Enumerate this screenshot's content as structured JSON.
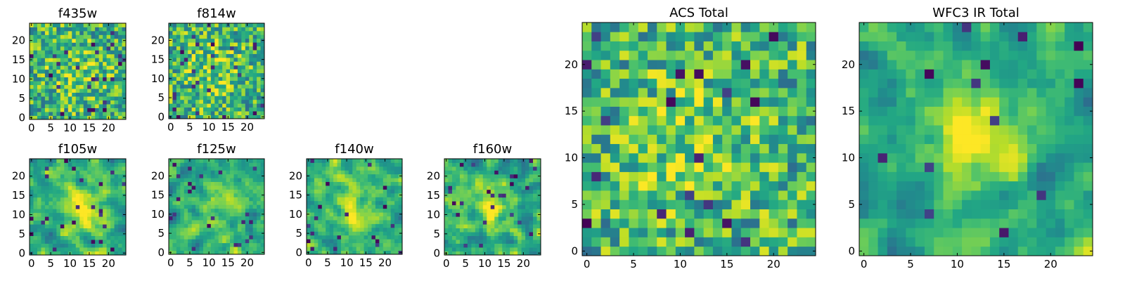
{
  "chart_data": [
    {
      "type": "heatmap",
      "title": "f435w",
      "colormap": "viridis",
      "grid_size": 25,
      "xlim": [
        0,
        24
      ],
      "ylim": [
        0,
        24
      ],
      "xticks": [
        0,
        5,
        10,
        15,
        20
      ],
      "yticks": [
        0,
        5,
        10,
        15,
        20
      ],
      "noise_profile": "fine",
      "blob": {
        "x": 12,
        "y": 12,
        "sigma": 6,
        "amp": 0.12
      },
      "seed": 435
    },
    {
      "type": "heatmap",
      "title": "f814w",
      "colormap": "viridis",
      "grid_size": 25,
      "xlim": [
        0,
        24
      ],
      "ylim": [
        0,
        24
      ],
      "xticks": [
        0,
        5,
        10,
        15,
        20
      ],
      "yticks": [
        0,
        5,
        10,
        15,
        20
      ],
      "noise_profile": "fine",
      "blob": {
        "x": 12,
        "y": 12,
        "sigma": 5,
        "amp": 0.15
      },
      "seed": 814
    },
    {
      "type": "heatmap",
      "title": "f105w",
      "colormap": "viridis",
      "grid_size": 25,
      "xlim": [
        0,
        24
      ],
      "ylim": [
        0,
        24
      ],
      "xticks": [
        0,
        5,
        10,
        15,
        20
      ],
      "yticks": [
        0,
        5,
        10,
        15,
        20
      ],
      "noise_profile": "smooth",
      "blob": {
        "x": 14,
        "y": 11,
        "sigma": 4,
        "amp": 0.35
      },
      "seed": 105
    },
    {
      "type": "heatmap",
      "title": "f125w",
      "colormap": "viridis",
      "grid_size": 25,
      "xlim": [
        0,
        24
      ],
      "ylim": [
        0,
        24
      ],
      "xticks": [
        0,
        5,
        10,
        15,
        20
      ],
      "yticks": [
        0,
        5,
        10,
        15,
        20
      ],
      "noise_profile": "smooth",
      "blob": {
        "x": 12,
        "y": 11,
        "sigma": 4,
        "amp": 0.2
      },
      "seed": 125
    },
    {
      "type": "heatmap",
      "title": "f140w",
      "colormap": "viridis",
      "grid_size": 25,
      "xlim": [
        0,
        24
      ],
      "ylim": [
        0,
        24
      ],
      "xticks": [
        0,
        5,
        10,
        15,
        20
      ],
      "yticks": [
        0,
        5,
        10,
        15,
        20
      ],
      "noise_profile": "smooth",
      "blob": {
        "x": 12,
        "y": 12,
        "sigma": 4,
        "amp": 0.3
      },
      "seed": 140
    },
    {
      "type": "heatmap",
      "title": "f160w",
      "colormap": "viridis",
      "grid_size": 25,
      "xlim": [
        0,
        24
      ],
      "ylim": [
        0,
        24
      ],
      "xticks": [
        0,
        5,
        10,
        15,
        20
      ],
      "yticks": [
        0,
        5,
        10,
        15,
        20
      ],
      "noise_profile": "smooth",
      "blob": {
        "x": 12,
        "y": 12,
        "sigma": 4,
        "amp": 0.35
      },
      "seed": 160
    },
    {
      "type": "heatmap",
      "title": "ACS Total",
      "colormap": "viridis",
      "grid_size": 25,
      "xlim": [
        0,
        24
      ],
      "ylim": [
        0,
        24
      ],
      "xticks": [
        0,
        5,
        10,
        15,
        20
      ],
      "yticks": [
        0,
        5,
        10,
        15,
        20
      ],
      "noise_profile": "fine",
      "blob": {
        "x": 11,
        "y": 12,
        "sigma": 5,
        "amp": 0.15
      },
      "seed": 7
    },
    {
      "type": "heatmap",
      "title": "WFC3 IR Total",
      "colormap": "viridis",
      "grid_size": 25,
      "xlim": [
        0,
        24
      ],
      "ylim": [
        0,
        24
      ],
      "xticks": [
        0,
        5,
        10,
        15,
        20
      ],
      "yticks": [
        0,
        5,
        10,
        15,
        20
      ],
      "noise_profile": "smooth",
      "blob": {
        "x": 12,
        "y": 12,
        "sigma": 3.5,
        "amp": 0.5
      },
      "seed": 31
    }
  ]
}
